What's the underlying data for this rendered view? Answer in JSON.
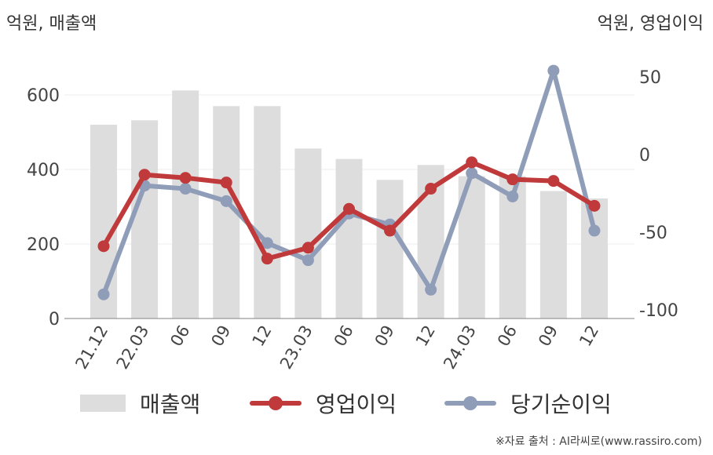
{
  "header": {
    "unit_left": "억원, 매출액",
    "unit_right": "억원, 영업이익"
  },
  "chart_data": {
    "type": "bar",
    "categories": [
      "21.12",
      "22.03",
      "06",
      "09",
      "12",
      "23.03",
      "06",
      "09",
      "12",
      "24.03",
      "06",
      "09",
      "12"
    ],
    "y_left": {
      "ylim": [
        0,
        700
      ],
      "ticks": [
        0,
        200,
        400,
        600
      ]
    },
    "y_right": {
      "ylim": [
        -105,
        55
      ],
      "ticks": [
        -100,
        -50,
        0,
        50
      ]
    },
    "grid": true,
    "legend_placement": "bottom",
    "series": [
      {
        "name": "매출액",
        "type": "bar",
        "axis": "left",
        "color": "#dddddd",
        "values": [
          520,
          532,
          612,
          570,
          570,
          456,
          428,
          372,
          412,
          382,
          382,
          342,
          322
        ]
      },
      {
        "name": "영업이익",
        "type": "line",
        "axis": "right",
        "color": "#c0393b",
        "values": [
          -59,
          -13,
          -15,
          -18,
          -67,
          -60,
          -35,
          -49,
          -22,
          -5,
          -16,
          -17,
          -33
        ]
      },
      {
        "name": "당기순이익",
        "type": "line",
        "axis": "right",
        "color": "#8f9db9",
        "values": [
          -90,
          -20,
          -22,
          -30,
          -57,
          -68,
          -38,
          -45,
          -87,
          -12,
          -27,
          54,
          -49
        ]
      }
    ]
  },
  "source": "※자료 출처 : AI라씨로(www.rassiro.com)"
}
